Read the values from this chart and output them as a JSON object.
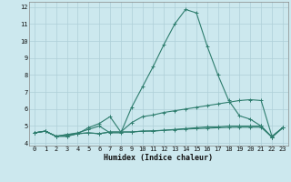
{
  "x": [
    0,
    1,
    2,
    3,
    4,
    5,
    6,
    7,
    8,
    9,
    10,
    11,
    12,
    13,
    14,
    15,
    16,
    17,
    18,
    19,
    20,
    21,
    22,
    23
  ],
  "line1": [
    4.6,
    4.7,
    4.4,
    4.5,
    4.6,
    4.8,
    5.0,
    4.6,
    4.6,
    6.1,
    7.3,
    8.5,
    9.8,
    11.0,
    11.85,
    11.65,
    9.7,
    8.0,
    6.5,
    5.6,
    5.4,
    5.0,
    4.35,
    4.9
  ],
  "line2": [
    4.6,
    4.7,
    4.4,
    4.5,
    4.55,
    4.9,
    5.15,
    5.55,
    4.65,
    5.2,
    5.55,
    5.65,
    5.8,
    5.9,
    6.0,
    6.1,
    6.2,
    6.3,
    6.4,
    6.5,
    6.55,
    6.5,
    4.4,
    4.9
  ],
  "line3": [
    4.6,
    4.7,
    4.4,
    4.4,
    4.55,
    4.6,
    4.55,
    4.65,
    4.65,
    4.65,
    4.7,
    4.7,
    4.75,
    4.8,
    4.85,
    4.9,
    4.95,
    4.95,
    5.0,
    5.0,
    5.0,
    5.0,
    4.35,
    4.9
  ],
  "line4": [
    4.6,
    4.7,
    4.4,
    4.4,
    4.55,
    4.6,
    4.55,
    4.65,
    4.65,
    4.65,
    4.7,
    4.72,
    4.75,
    4.78,
    4.82,
    4.85,
    4.87,
    4.9,
    4.92,
    4.93,
    4.93,
    4.93,
    4.35,
    4.9
  ],
  "line_color": "#2e7d6e",
  "bg_color": "#cce8ee",
  "grid_color": "#aecfd8",
  "xlabel": "Humidex (Indice chaleur)",
  "xlim": [
    -0.5,
    23.5
  ],
  "ylim": [
    3.85,
    12.3
  ],
  "yticks": [
    4,
    5,
    6,
    7,
    8,
    9,
    10,
    11,
    12
  ],
  "xticks": [
    0,
    1,
    2,
    3,
    4,
    5,
    6,
    7,
    8,
    9,
    10,
    11,
    12,
    13,
    14,
    15,
    16,
    17,
    18,
    19,
    20,
    21,
    22,
    23
  ],
  "tick_fontsize": 5.0,
  "xlabel_fontsize": 6.0,
  "lw": 0.8,
  "marker_size": 2.5
}
